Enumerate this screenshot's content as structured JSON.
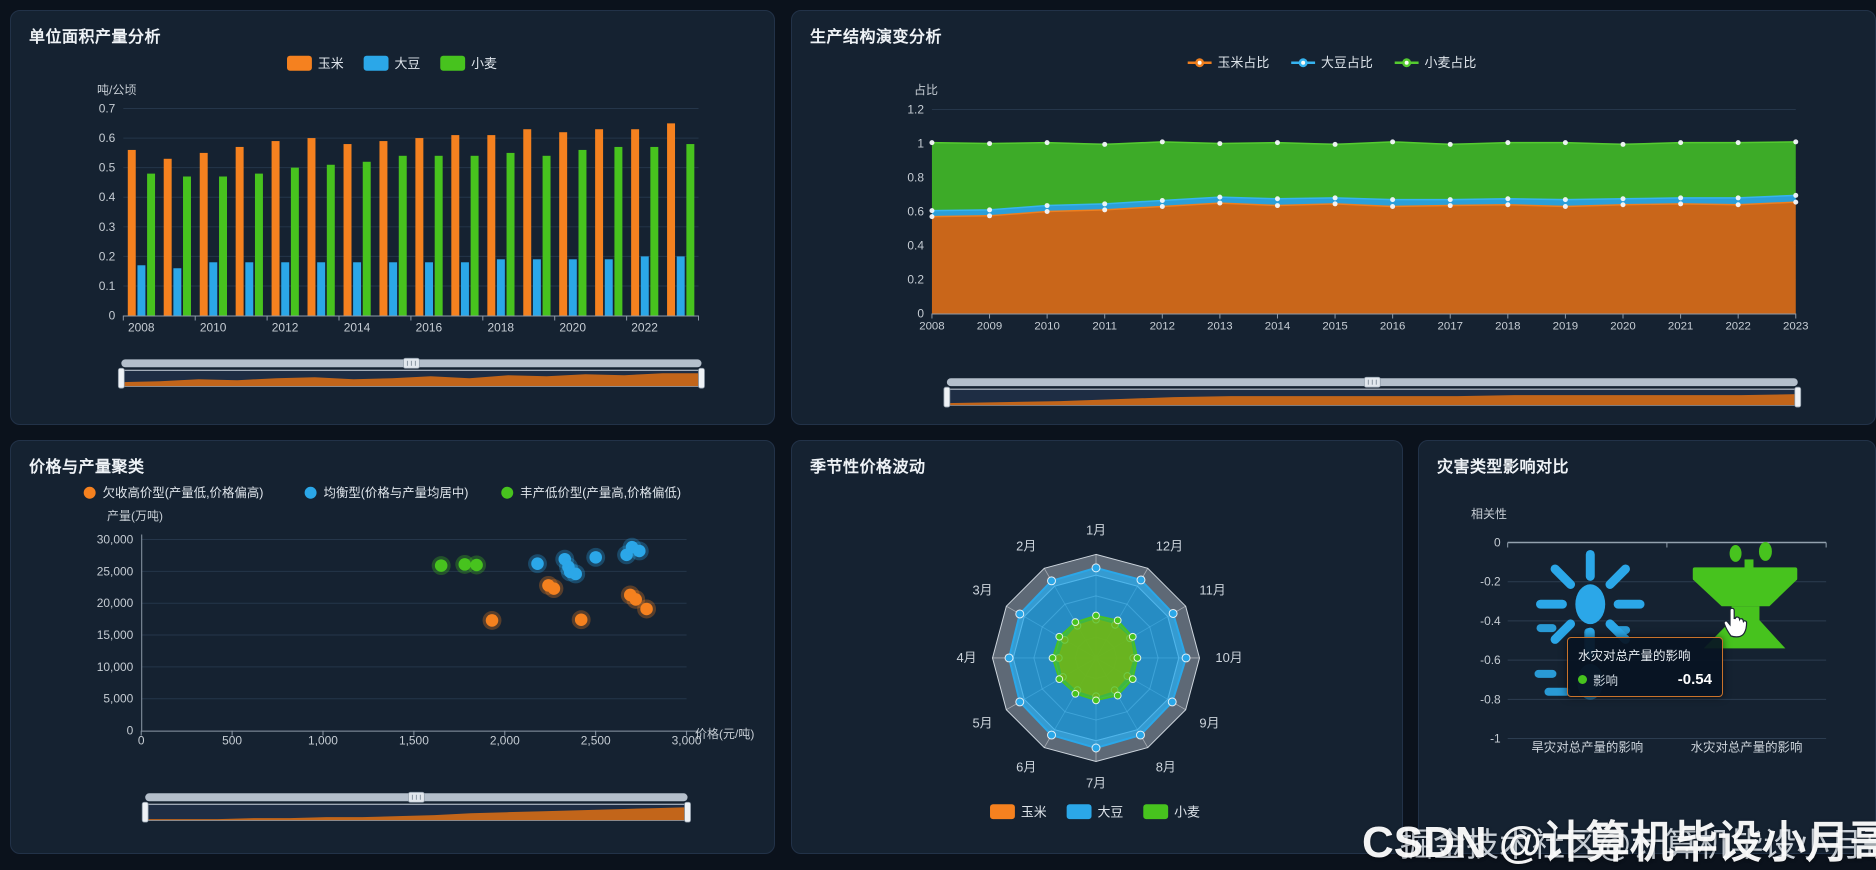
{
  "colors": {
    "corn": "#f5811f",
    "soy": "#2ba7e8",
    "wheat": "#47c31e",
    "panel_bg": "#152231",
    "page_bg": "#0b121c",
    "grid": "#25364a",
    "axis": "#8e9aa8",
    "tick_text": "#c6cdd4",
    "tooltip_border": "#c9722b"
  },
  "watermarks": {
    "line1": "CSDN @计算机毕设小月哥",
    "line2": "掘金技术社区@计算机毕设小月哥"
  },
  "panels": {
    "yield": {
      "title": "单位面积产量分析"
    },
    "structure": {
      "title": "生产结构演变分析"
    },
    "cluster": {
      "title": "价格与产量聚类"
    },
    "seasonal": {
      "title": "季节性价格波动"
    },
    "disaster": {
      "title": "灾害类型影响对比"
    }
  },
  "chart_data": [
    {
      "type": "bar",
      "title": "单位面积产量分析",
      "ylabel": "吨/公顷",
      "ylim": [
        0,
        0.7
      ],
      "ytick_step": 0.1,
      "categories": [
        "2008",
        "2009",
        "2010",
        "2011",
        "2012",
        "2013",
        "2014",
        "2015",
        "2016",
        "2017",
        "2018",
        "2019",
        "2020",
        "2021",
        "2022",
        "2023"
      ],
      "xtick_labels": [
        "2008",
        "2010",
        "2012",
        "2014",
        "2016",
        "2018",
        "2020",
        "2022"
      ],
      "series": [
        {
          "name": "玉米",
          "color": "#f5811f",
          "values": [
            0.56,
            0.53,
            0.55,
            0.57,
            0.59,
            0.6,
            0.58,
            0.59,
            0.6,
            0.61,
            0.61,
            0.63,
            0.62,
            0.63,
            0.63,
            0.65
          ]
        },
        {
          "name": "大豆",
          "color": "#2ba7e8",
          "values": [
            0.17,
            0.16,
            0.18,
            0.18,
            0.18,
            0.18,
            0.18,
            0.18,
            0.18,
            0.18,
            0.19,
            0.19,
            0.19,
            0.19,
            0.2,
            0.2
          ]
        },
        {
          "name": "小麦",
          "color": "#47c31e",
          "values": [
            0.48,
            0.47,
            0.47,
            0.48,
            0.5,
            0.51,
            0.52,
            0.54,
            0.54,
            0.54,
            0.55,
            0.54,
            0.56,
            0.57,
            0.57,
            0.58
          ]
        }
      ],
      "has_datazoom": true
    },
    {
      "type": "area",
      "title": "生产结构演变分析",
      "stacked": true,
      "ylabel": "占比",
      "ylim": [
        0,
        1.2
      ],
      "ytick_step": 0.2,
      "categories": [
        "2008",
        "2009",
        "2010",
        "2011",
        "2012",
        "2013",
        "2014",
        "2015",
        "2016",
        "2017",
        "2018",
        "2019",
        "2020",
        "2021",
        "2022",
        "2023"
      ],
      "series": [
        {
          "name": "玉米占比",
          "color": "#c9661a",
          "line": "#ef7f1e",
          "values": [
            0.57,
            0.575,
            0.6,
            0.61,
            0.63,
            0.65,
            0.635,
            0.645,
            0.63,
            0.635,
            0.64,
            0.63,
            0.64,
            0.645,
            0.64,
            0.655
          ]
        },
        {
          "name": "大豆占比",
          "color": "#2b9fd9",
          "line": "#36b4f0",
          "values": [
            0.035,
            0.035,
            0.035,
            0.035,
            0.035,
            0.035,
            0.04,
            0.035,
            0.04,
            0.035,
            0.035,
            0.04,
            0.035,
            0.035,
            0.04,
            0.04
          ]
        },
        {
          "name": "小麦占比",
          "color": "#3dab28",
          "line": "#55cb30",
          "values": [
            0.4,
            0.39,
            0.37,
            0.35,
            0.345,
            0.315,
            0.33,
            0.315,
            0.34,
            0.325,
            0.33,
            0.335,
            0.32,
            0.325,
            0.325,
            0.315
          ]
        }
      ],
      "has_datazoom": true
    },
    {
      "type": "scatter",
      "title": "价格与产量聚类",
      "xlabel": "价格(元/吨)",
      "ylabel": "产量(万吨)",
      "xlim": [
        0,
        3000
      ],
      "xtick_step": 500,
      "ylim": [
        0,
        30000
      ],
      "ytick_step": 5000,
      "series": [
        {
          "name": "欠收高价型(产量低,价格偏高)",
          "color": "#f5811f",
          "points": [
            [
              1930,
              17300
            ],
            [
              2240,
              22800
            ],
            [
              2270,
              22300
            ],
            [
              2420,
              17400
            ],
            [
              2690,
              21300
            ],
            [
              2720,
              20600
            ],
            [
              2780,
              19100
            ]
          ]
        },
        {
          "name": "均衡型(价格与产量均居中)",
          "color": "#2ba7e8",
          "points": [
            [
              2180,
              26200
            ],
            [
              2330,
              26900
            ],
            [
              2350,
              25700
            ],
            [
              2360,
              24900
            ],
            [
              2390,
              24600
            ],
            [
              2500,
              27200
            ],
            [
              2670,
              27600
            ],
            [
              2700,
              28800
            ],
            [
              2740,
              28200
            ]
          ]
        },
        {
          "name": "丰产低价型(产量高,价格偏低)",
          "color": "#47c31e",
          "points": [
            [
              1650,
              25900
            ],
            [
              1780,
              26100
            ],
            [
              1845,
              26000
            ]
          ]
        }
      ],
      "has_datazoom": true
    },
    {
      "type": "radar",
      "title": "季节性价格波动",
      "max": 100,
      "indicators": [
        "1月",
        "2月",
        "3月",
        "4月",
        "5月",
        "6月",
        "7月",
        "8月",
        "9月",
        "10月",
        "11月",
        "12月"
      ],
      "series": [
        {
          "name": "玉米",
          "color": "#f5811f",
          "values": [
            37,
            36,
            35,
            36,
            37,
            36,
            37,
            36,
            35,
            36,
            38,
            37
          ]
        },
        {
          "name": "大豆",
          "color": "#2ba7e8",
          "values": [
            87,
            86,
            85,
            84,
            85,
            86,
            87,
            86,
            85,
            87,
            86,
            87
          ]
        },
        {
          "name": "小麦",
          "color": "#47c31e",
          "values": [
            41,
            40,
            41,
            42,
            41,
            40,
            41,
            42,
            41,
            40,
            41,
            42
          ]
        }
      ]
    },
    {
      "type": "bar",
      "subtype": "pictorial",
      "title": "灾害类型影响对比",
      "ylabel": "相关性",
      "ylim": [
        -1,
        0
      ],
      "ytick_step": 0.2,
      "categories": [
        "旱灾对总产量的影响",
        "水灾对总产量的影响"
      ],
      "values": [
        -0.75,
        -0.54
      ],
      "icons": [
        "sun-icon",
        "water-tap-icon"
      ],
      "bar_colors": [
        "#2ba7e8",
        "#47c31e"
      ],
      "tooltip": {
        "title": "水灾对总产量的影响",
        "series_label": "影响",
        "value": "-0.54",
        "marker_color": "#47c31e"
      }
    }
  ]
}
